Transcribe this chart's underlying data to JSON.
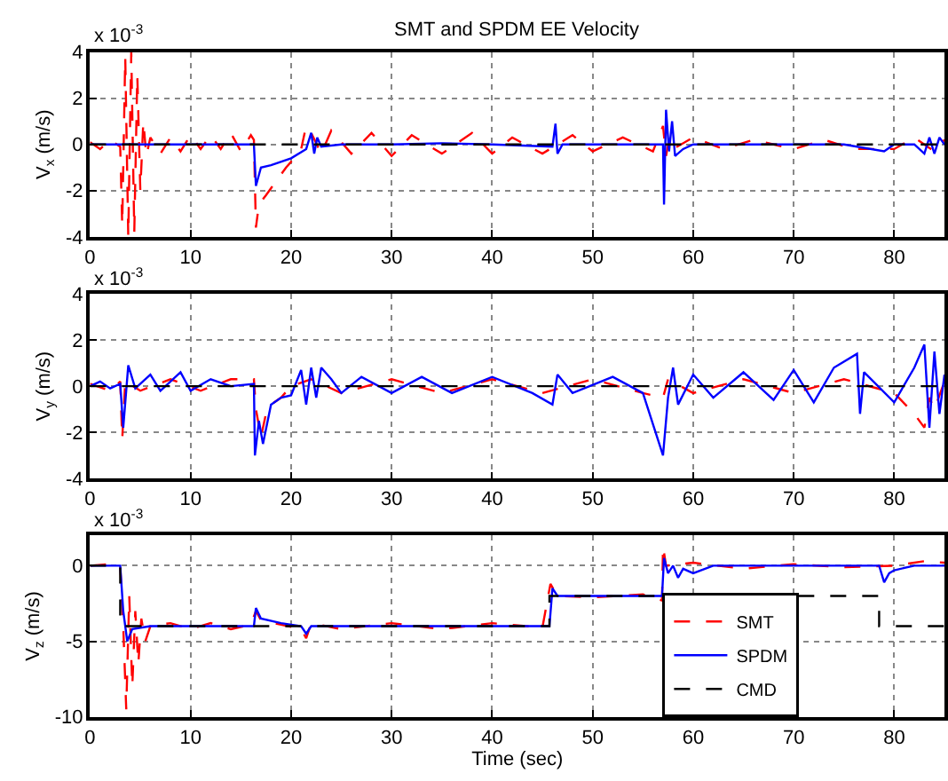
{
  "chart_data": [
    {
      "type": "line",
      "title": "SMT and SPDM EE Velocity",
      "ylabel": "V$_{x}$ (m/s)",
      "annotations": [
        "x 10$^{-3}$"
      ],
      "xlim": [
        0,
        85
      ],
      "xticks": [
        0,
        10,
        20,
        30,
        40,
        50,
        60,
        70,
        80
      ],
      "ylim": [
        -4,
        4
      ],
      "yticks": [
        -4,
        -2,
        0,
        2,
        4
      ],
      "grid": true,
      "marker": "none",
      "series": [
        {
          "color": "#ff0000",
          "line_style": "dashed",
          "x": [
            0,
            1,
            2,
            3,
            3.2,
            3.5,
            3.8,
            4.1,
            4.4,
            4.7,
            5,
            5.3,
            5.6,
            6,
            7,
            8,
            9,
            10,
            11,
            12,
            13,
            14,
            15,
            16,
            16.3,
            16.5,
            16.8,
            17.5,
            18.5,
            19.5,
            20.5,
            21,
            21.5,
            22,
            23,
            24,
            26,
            28,
            30,
            32,
            35,
            38,
            40,
            42,
            45,
            48,
            50,
            53,
            56,
            57,
            57.3,
            57.6,
            58,
            60,
            63,
            66,
            70,
            73,
            76,
            80,
            82,
            84,
            85
          ],
          "values": [
            0.1,
            -0.2,
            0.2,
            -0.1,
            -3.5,
            3.8,
            -4,
            4,
            -3.8,
            3,
            -2,
            1,
            -0.5,
            0.3,
            -0.4,
            0.3,
            -0.3,
            0.4,
            -0.2,
            0.4,
            -0.2,
            0.5,
            -0.3,
            0.4,
            0.2,
            -3.6,
            -2.6,
            -2.2,
            -1.6,
            -1,
            -0.5,
            -0.2,
            0.8,
            0.5,
            -0.4,
            0.6,
            -0.4,
            0.5,
            -0.5,
            0.4,
            -0.4,
            0.5,
            -0.4,
            0.3,
            -0.4,
            0.4,
            -0.3,
            0.3,
            -0.3,
            0.8,
            -0.5,
            0.2,
            -0.2,
            0.3,
            -0.2,
            0.2,
            -0.2,
            0.2,
            -0.2,
            -0.2,
            0.3,
            -0.3,
            0.2
          ]
        },
        {
          "color": "#0000ff",
          "line_style": "solid",
          "x": [
            0,
            5,
            10,
            16.3,
            16.5,
            17,
            18,
            20,
            21.5,
            22,
            22.3,
            22.6,
            23,
            25,
            30,
            35,
            40,
            46,
            46.3,
            46.5,
            47,
            50,
            55,
            57,
            57.1,
            57.3,
            57.6,
            57.9,
            58.2,
            59,
            60,
            65,
            70,
            75,
            79,
            80,
            82,
            83,
            83.5,
            84,
            84.5,
            85
          ],
          "values": [
            0,
            0,
            0,
            0,
            -1.8,
            -1,
            -0.9,
            -0.6,
            -0.2,
            0.5,
            -0.4,
            0.3,
            -0.1,
            0,
            0,
            0.05,
            0,
            -0.1,
            0.9,
            -0.4,
            0,
            0,
            0,
            0,
            -2.6,
            1.5,
            -0.3,
            1,
            -0.5,
            -0.2,
            0,
            0,
            0,
            0,
            -0.3,
            0,
            0,
            -0.4,
            0.3,
            -0.4,
            0.3,
            0
          ]
        },
        {
          "color": "#000000",
          "line_style": "dashed",
          "x": [
            0,
            85
          ],
          "values": [
            0,
            0
          ]
        }
      ]
    },
    {
      "type": "line",
      "ylabel": "V$_{y}$ (m/s)",
      "annotations": [
        "x 10$^{-3}$"
      ],
      "xlim": [
        0,
        85
      ],
      "xticks": [
        0,
        10,
        20,
        30,
        40,
        50,
        60,
        70,
        80
      ],
      "ylim": [
        -4,
        4
      ],
      "yticks": [
        -4,
        -2,
        0,
        2,
        4
      ],
      "grid": true,
      "marker": "none",
      "series": [
        {
          "color": "#ff0000",
          "line_style": "dashed",
          "x": [
            0,
            2,
            3,
            3.2,
            3.5,
            5,
            8,
            11,
            14,
            16.3,
            16.5,
            17,
            17.5,
            18,
            19,
            20,
            22,
            25,
            30,
            35,
            40,
            45,
            50,
            55,
            57,
            57.5,
            60,
            65,
            70,
            75,
            80,
            82,
            83,
            83.5,
            84,
            85
          ],
          "values": [
            0.1,
            -0.2,
            0.2,
            -2.3,
            0.2,
            -0.2,
            0.3,
            -0.2,
            0.3,
            0.3,
            -1,
            -2.2,
            -1.2,
            -0.8,
            -0.5,
            0,
            0.3,
            -0.3,
            0.3,
            -0.3,
            0.3,
            -0.3,
            0.3,
            -0.3,
            -0.5,
            0.3,
            -0.3,
            0.3,
            -0.3,
            0.3,
            -0.3,
            -1.2,
            -1.8,
            -0.5,
            -1,
            0.2
          ]
        },
        {
          "color": "#0000ff",
          "line_style": "solid",
          "x": [
            0,
            1,
            2,
            3,
            3.3,
            3.8,
            4.5,
            6,
            7,
            9,
            10,
            12,
            14,
            16.3,
            16.4,
            16.8,
            17.2,
            18,
            19,
            20,
            21,
            21.5,
            22,
            22.5,
            23,
            24,
            25,
            27,
            30,
            33,
            36,
            40,
            44,
            46,
            46.5,
            48,
            52,
            55,
            57,
            57.5,
            58,
            58.5,
            60,
            62,
            65,
            68,
            70,
            72,
            74,
            76.3,
            76.6,
            77,
            80,
            82,
            83,
            83.5,
            84,
            84.5,
            85
          ],
          "values": [
            0,
            0.2,
            -0.1,
            0.1,
            -1.8,
            0.9,
            -0.1,
            0.5,
            -0.2,
            0.6,
            -0.2,
            0.3,
            0,
            0.1,
            -3,
            -1.5,
            -2.5,
            -0.8,
            -0.5,
            -0.4,
            0.7,
            -0.8,
            0.8,
            -0.5,
            0.8,
            0.3,
            -0.3,
            0.4,
            -0.3,
            0.4,
            -0.3,
            0.4,
            -0.3,
            -0.8,
            0.5,
            -0.3,
            0.4,
            -0.3,
            -3,
            -0.5,
            0.8,
            -0.8,
            0.5,
            -0.5,
            0.6,
            -0.6,
            0.7,
            -0.7,
            0.8,
            1.4,
            -1.2,
            0.6,
            -0.7,
            0.8,
            1.8,
            -1.8,
            1.5,
            -1.2,
            0.5
          ]
        },
        {
          "color": "#000000",
          "line_style": "dashed",
          "x": [
            0,
            85
          ],
          "values": [
            0,
            0
          ]
        }
      ]
    },
    {
      "type": "line",
      "xlabel": "Time (sec)",
      "ylabel": "V$_{z}$ (m/s)",
      "annotations": [
        "x 10$^{-3}$"
      ],
      "xlim": [
        0,
        85
      ],
      "xticks": [
        0,
        10,
        20,
        30,
        40,
        50,
        60,
        70,
        80
      ],
      "ylim": [
        -10,
        2
      ],
      "yticks": [
        -10,
        -5,
        0
      ],
      "grid": true,
      "marker": "none",
      "legend": "right",
      "series": [
        {
          "name": "SMT",
          "color": "#ff0000",
          "line_style": "dashed",
          "x": [
            0,
            2,
            3,
            3.3,
            3.6,
            3.9,
            4.2,
            4.5,
            4.8,
            5.1,
            5.5,
            6,
            8,
            10,
            12,
            14,
            16,
            16.5,
            17,
            19,
            21,
            21.5,
            22,
            25,
            30,
            35,
            40,
            45,
            45.8,
            46.5,
            50,
            55,
            56.9,
            57,
            57.3,
            60,
            65,
            70,
            75,
            80,
            83,
            85
          ],
          "values": [
            0,
            0.1,
            0,
            -4,
            -9.5,
            -2,
            -8,
            -3,
            -6.5,
            -3.5,
            -5,
            -4,
            -3.8,
            -4.2,
            -3.8,
            -4.2,
            -3.9,
            -3,
            -3.6,
            -3.9,
            -4.2,
            -4.8,
            -3.8,
            -4.2,
            -3.8,
            -4.2,
            -3.8,
            -4.1,
            -1.2,
            -2,
            -2.1,
            -1.9,
            -2.3,
            1.3,
            0,
            0.2,
            -0.2,
            0.1,
            -0.1,
            0,
            0.3,
            0.2
          ]
        },
        {
          "name": "SPDM",
          "color": "#0000ff",
          "line_style": "solid",
          "x": [
            0,
            3,
            3.3,
            3.7,
            4.2,
            6,
            10,
            16.3,
            16.5,
            17,
            19,
            21,
            21.5,
            22,
            25,
            30,
            35,
            40,
            45.7,
            46,
            46.5,
            50,
            56.9,
            57.1,
            57.5,
            58,
            58.5,
            59,
            60,
            62,
            65,
            70,
            75,
            78.5,
            79,
            79.5,
            80,
            82,
            85
          ],
          "values": [
            0,
            0,
            -3,
            -5,
            -4.2,
            -4,
            -4,
            -4,
            -2.8,
            -3.5,
            -3.8,
            -4,
            -4.5,
            -4,
            -4,
            -4,
            -4,
            -4,
            -4,
            -1.5,
            -2,
            -2,
            -2,
            0.5,
            -0.5,
            0,
            -0.8,
            -0.2,
            -0.5,
            0,
            0,
            0,
            0,
            0,
            -1.1,
            -0.5,
            -0.3,
            0,
            0
          ]
        },
        {
          "name": "CMD",
          "color": "#000000",
          "line_style": "dashed",
          "x": [
            0,
            3,
            3,
            45.7,
            45.7,
            78.5,
            78.5,
            85
          ],
          "values": [
            0,
            0,
            -4,
            -4,
            -2,
            -2,
            -4,
            -4
          ]
        }
      ]
    }
  ]
}
